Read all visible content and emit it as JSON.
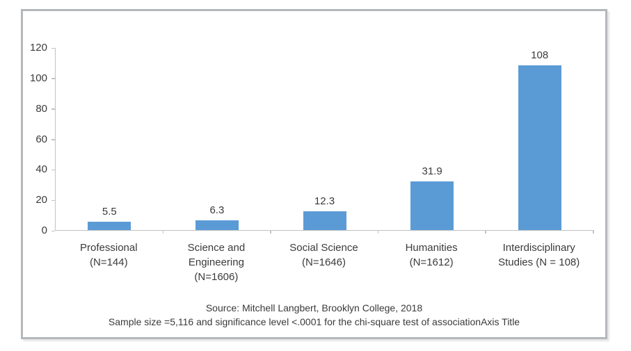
{
  "chart_data": {
    "type": "bar",
    "title": "",
    "categories": [
      "Professional (N=144)",
      "Science and Engineering (N=1606)",
      "Social Science (N=1646)",
      "Humanities (N=1612)",
      "Interdisciplinary Studies (N = 108)"
    ],
    "category_label_lines": [
      [
        "Professional",
        "(N=144)"
      ],
      [
        "Science and",
        "Engineering",
        "(N=1606)"
      ],
      [
        "Social Science",
        "(N=1646)"
      ],
      [
        "Humanities",
        "(N=1612)"
      ],
      [
        "Interdisciplinary",
        "Studies (N = 108)"
      ]
    ],
    "values": [
      5.5,
      6.3,
      12.3,
      31.9,
      108
    ],
    "value_labels": [
      "5.5",
      "6.3",
      "12.3",
      "31.9",
      "108"
    ],
    "xlabel": "",
    "ylabel": "",
    "ylim": [
      0,
      120
    ],
    "yticks": [
      0,
      20,
      40,
      60,
      80,
      100,
      120
    ],
    "grid": "off",
    "legend": "none",
    "footnote_lines": [
      "Source: Mitchell Langbert, Brooklyn College, 2018",
      "Sample size =5,116 and significance level <.0001 for the chi-square test of associationAxis Title"
    ]
  },
  "colors": {
    "bar": "#5B9BD5",
    "axis_line": "#C3C3C3",
    "text": "#3A3A3A",
    "frame_border": "#B4B8BB"
  }
}
